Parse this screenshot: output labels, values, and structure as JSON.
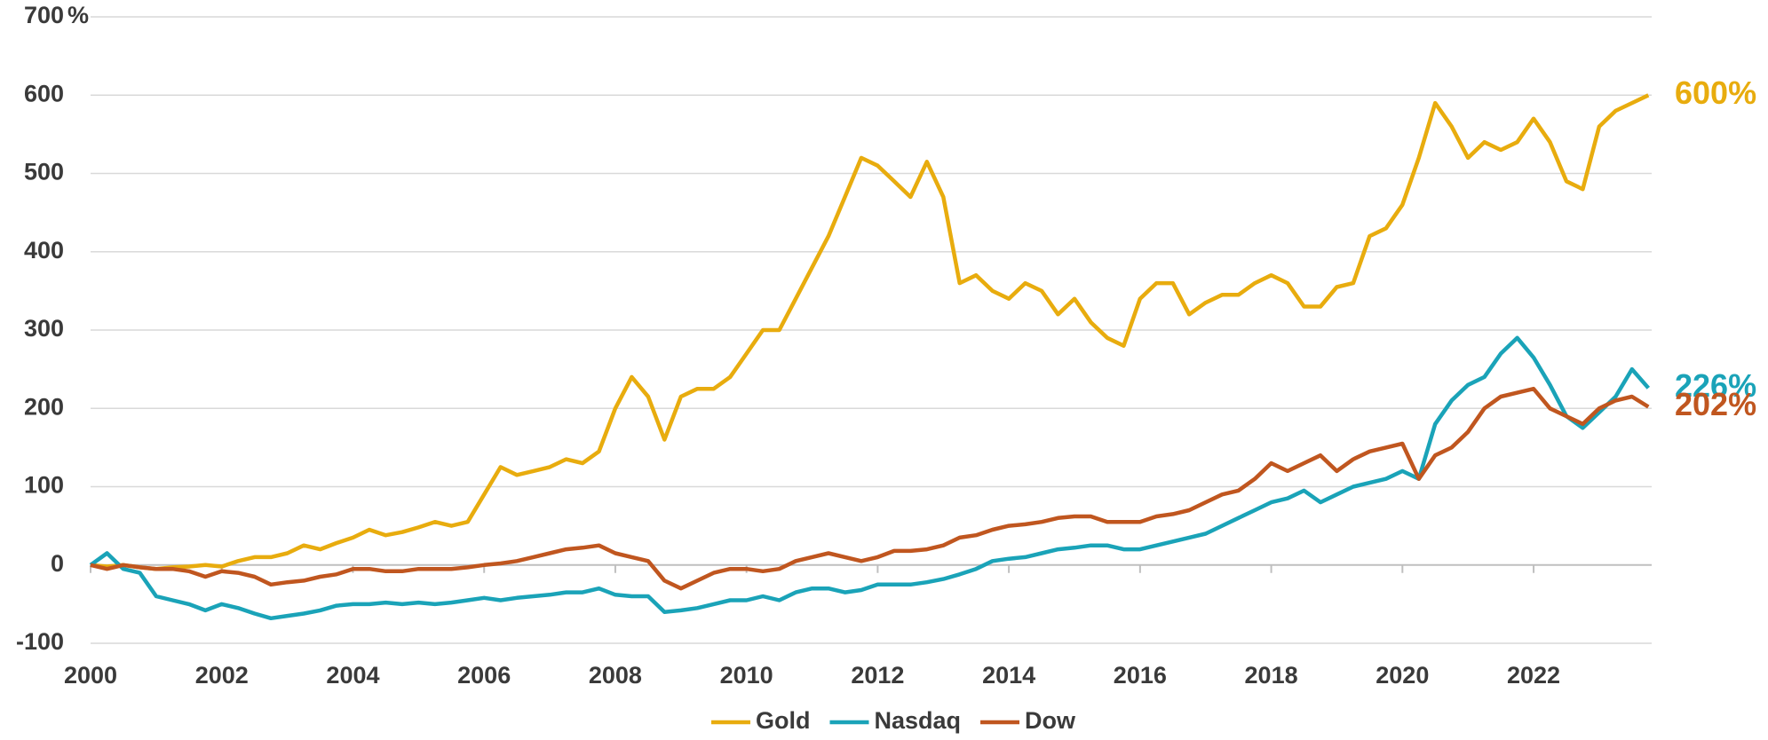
{
  "chart_data": {
    "type": "line",
    "y_label": "%",
    "x": [
      2000,
      2000.25,
      2000.5,
      2000.75,
      2001,
      2001.25,
      2001.5,
      2001.75,
      2002,
      2002.25,
      2002.5,
      2002.75,
      2003,
      2003.25,
      2003.5,
      2003.75,
      2004,
      2004.25,
      2004.5,
      2004.75,
      2005,
      2005.25,
      2005.5,
      2005.75,
      2006,
      2006.25,
      2006.5,
      2006.75,
      2007,
      2007.25,
      2007.5,
      2007.75,
      2008,
      2008.25,
      2008.5,
      2008.75,
      2009,
      2009.25,
      2009.5,
      2009.75,
      2010,
      2010.25,
      2010.5,
      2010.75,
      2011,
      2011.25,
      2011.5,
      2011.75,
      2012,
      2012.25,
      2012.5,
      2012.75,
      2013,
      2013.25,
      2013.5,
      2013.75,
      2014,
      2014.25,
      2014.5,
      2014.75,
      2015,
      2015.25,
      2015.5,
      2015.75,
      2016,
      2016.25,
      2016.5,
      2016.75,
      2017,
      2017.25,
      2017.5,
      2017.75,
      2018,
      2018.25,
      2018.5,
      2018.75,
      2019,
      2019.25,
      2019.5,
      2019.75,
      2020,
      2020.25,
      2020.5,
      2020.75,
      2021,
      2021.25,
      2021.5,
      2021.75,
      2022,
      2022.25,
      2022.5,
      2022.75,
      2023,
      2023.25,
      2023.5,
      2023.75
    ],
    "series": [
      {
        "name": "Gold",
        "color": "#e8ac0e",
        "values": [
          0,
          -2,
          0,
          -3,
          -5,
          -3,
          -2,
          0,
          -2,
          5,
          10,
          10,
          15,
          25,
          20,
          28,
          35,
          45,
          38,
          42,
          48,
          55,
          50,
          55,
          90,
          125,
          115,
          120,
          125,
          135,
          130,
          145,
          200,
          240,
          215,
          160,
          215,
          225,
          225,
          240,
          270,
          300,
          300,
          340,
          380,
          420,
          470,
          520,
          510,
          490,
          470,
          515,
          470,
          360,
          370,
          350,
          340,
          360,
          350,
          320,
          340,
          310,
          290,
          280,
          340,
          360,
          360,
          320,
          335,
          345,
          345,
          360,
          370,
          360,
          330,
          330,
          355,
          360,
          420,
          430,
          460,
          520,
          590,
          560,
          520,
          540,
          530,
          540,
          570,
          540,
          490,
          480,
          560,
          580,
          590,
          600
        ]
      },
      {
        "name": "Nasdaq",
        "color": "#1aa3b8",
        "values": [
          0,
          15,
          -5,
          -10,
          -40,
          -45,
          -50,
          -58,
          -50,
          -55,
          -62,
          -68,
          -65,
          -62,
          -58,
          -52,
          -50,
          -50,
          -48,
          -50,
          -48,
          -50,
          -48,
          -45,
          -42,
          -45,
          -42,
          -40,
          -38,
          -35,
          -35,
          -30,
          -38,
          -40,
          -40,
          -60,
          -58,
          -55,
          -50,
          -45,
          -45,
          -40,
          -45,
          -35,
          -30,
          -30,
          -35,
          -32,
          -25,
          -25,
          -25,
          -22,
          -18,
          -12,
          -5,
          5,
          8,
          10,
          15,
          20,
          22,
          25,
          25,
          20,
          20,
          25,
          30,
          35,
          40,
          50,
          60,
          70,
          80,
          85,
          95,
          80,
          90,
          100,
          105,
          110,
          120,
          110,
          180,
          210,
          230,
          240,
          270,
          290,
          265,
          230,
          190,
          175,
          195,
          215,
          250,
          226
        ]
      },
      {
        "name": "Dow",
        "color": "#c0561f",
        "values": [
          0,
          -5,
          0,
          -3,
          -5,
          -5,
          -8,
          -15,
          -8,
          -10,
          -15,
          -25,
          -22,
          -20,
          -15,
          -12,
          -5,
          -5,
          -8,
          -8,
          -5,
          -5,
          -5,
          -3,
          0,
          2,
          5,
          10,
          15,
          20,
          22,
          25,
          15,
          10,
          5,
          -20,
          -30,
          -20,
          -10,
          -5,
          -5,
          -8,
          -5,
          5,
          10,
          15,
          10,
          5,
          10,
          18,
          18,
          20,
          25,
          35,
          38,
          45,
          50,
          52,
          55,
          60,
          62,
          62,
          55,
          55,
          55,
          62,
          65,
          70,
          80,
          90,
          95,
          110,
          130,
          120,
          130,
          140,
          120,
          135,
          145,
          150,
          155,
          110,
          140,
          150,
          170,
          200,
          215,
          220,
          225,
          200,
          190,
          180,
          200,
          210,
          215,
          202
        ]
      }
    ],
    "end_labels": [
      "600%",
      "226%",
      "202%"
    ],
    "xlim": [
      2000,
      2023.8
    ],
    "xticks": [
      2000,
      2002,
      2004,
      2006,
      2008,
      2010,
      2012,
      2014,
      2016,
      2018,
      2020,
      2022
    ],
    "ylim": [
      -100,
      700
    ],
    "yticks": [
      -100,
      0,
      100,
      200,
      300,
      400,
      500,
      600,
      700
    ],
    "grid": true,
    "legend": "bottom"
  }
}
